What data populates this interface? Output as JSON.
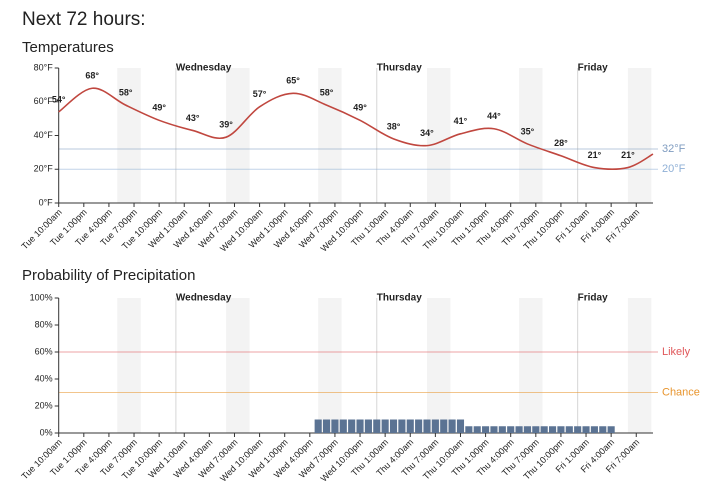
{
  "title": "Next 72 hours:",
  "chart_data": [
    {
      "type": "line",
      "title": "Temperatures",
      "xlim": [
        0,
        71
      ],
      "xticks": [
        {
          "value": 0,
          "label": "Tue 10:00am"
        },
        {
          "value": 3,
          "label": "Tue 1:00pm"
        },
        {
          "value": 6,
          "label": "Tue 4:00pm"
        },
        {
          "value": 9,
          "label": "Tue 7:00pm"
        },
        {
          "value": 12,
          "label": "Tue 10:00pm"
        },
        {
          "value": 15,
          "label": "Wed 1:00am"
        },
        {
          "value": 18,
          "label": "Wed 4:00am"
        },
        {
          "value": 21,
          "label": "Wed 7:00am"
        },
        {
          "value": 24,
          "label": "Wed 10:00am"
        },
        {
          "value": 27,
          "label": "Wed 1:00pm"
        },
        {
          "value": 30,
          "label": "Wed 4:00pm"
        },
        {
          "value": 33,
          "label": "Wed 7:00pm"
        },
        {
          "value": 36,
          "label": "Wed 10:00pm"
        },
        {
          "value": 39,
          "label": "Thu 1:00am"
        },
        {
          "value": 42,
          "label": "Thu 4:00am"
        },
        {
          "value": 45,
          "label": "Thu 7:00am"
        },
        {
          "value": 48,
          "label": "Thu 10:00am"
        },
        {
          "value": 51,
          "label": "Thu 1:00pm"
        },
        {
          "value": 54,
          "label": "Thu 4:00pm"
        },
        {
          "value": 57,
          "label": "Thu 7:00pm"
        },
        {
          "value": 60,
          "label": "Thu 10:00pm"
        },
        {
          "value": 63,
          "label": "Fri 1:00am"
        },
        {
          "value": 66,
          "label": "Fri 4:00am"
        },
        {
          "value": 69,
          "label": "Fri 7:00am"
        }
      ],
      "day_markers": [
        {
          "value": 14,
          "label": "Wednesday"
        },
        {
          "value": 38,
          "label": "Thursday"
        },
        {
          "value": 62,
          "label": "Friday"
        }
      ],
      "ylim": [
        0,
        80
      ],
      "yticks": [
        {
          "value": 0,
          "label": "0°F"
        },
        {
          "value": 20,
          "label": "20°F"
        },
        {
          "value": 40,
          "label": "40°F"
        },
        {
          "value": 60,
          "label": "60°F"
        },
        {
          "value": 80,
          "label": "80°F"
        }
      ],
      "reference_lines": [
        {
          "value": 32,
          "label": "32°F",
          "color": "#7f9cc0"
        },
        {
          "value": 20,
          "label": "20°F",
          "color": "#8fb0d6"
        }
      ],
      "series": [
        {
          "color": "#c0473f",
          "x": [
            0,
            4,
            8,
            12,
            16,
            20,
            24,
            28,
            32,
            36,
            40,
            44,
            48,
            52,
            56,
            60,
            64,
            68,
            71
          ],
          "values": [
            54,
            68,
            58,
            49,
            43,
            39,
            57,
            65,
            58,
            49,
            38,
            34,
            41,
            44,
            35,
            28,
            21,
            21,
            29
          ],
          "value_labels": [
            "54°",
            "68°",
            "58°",
            "49°",
            "43°",
            "39°",
            "57°",
            "65°",
            "58°",
            "49°",
            "38°",
            "34°",
            "41°",
            "44°",
            "35°",
            "28°",
            "21°",
            "21°",
            null
          ]
        }
      ]
    },
    {
      "type": "bar",
      "title": "Probability of Precipitation",
      "xlim": [
        0,
        71
      ],
      "xticks": [
        {
          "value": 0,
          "label": "Tue 10:00am"
        },
        {
          "value": 3,
          "label": "Tue 1:00pm"
        },
        {
          "value": 6,
          "label": "Tue 4:00pm"
        },
        {
          "value": 9,
          "label": "Tue 7:00pm"
        },
        {
          "value": 12,
          "label": "Tue 10:00pm"
        },
        {
          "value": 15,
          "label": "Wed 1:00am"
        },
        {
          "value": 18,
          "label": "Wed 4:00am"
        },
        {
          "value": 21,
          "label": "Wed 7:00am"
        },
        {
          "value": 24,
          "label": "Wed 10:00am"
        },
        {
          "value": 27,
          "label": "Wed 1:00pm"
        },
        {
          "value": 30,
          "label": "Wed 4:00pm"
        },
        {
          "value": 33,
          "label": "Wed 7:00pm"
        },
        {
          "value": 36,
          "label": "Wed 10:00pm"
        },
        {
          "value": 39,
          "label": "Thu 1:00am"
        },
        {
          "value": 42,
          "label": "Thu 4:00am"
        },
        {
          "value": 45,
          "label": "Thu 7:00am"
        },
        {
          "value": 48,
          "label": "Thu 10:00am"
        },
        {
          "value": 51,
          "label": "Thu 1:00pm"
        },
        {
          "value": 54,
          "label": "Thu 4:00pm"
        },
        {
          "value": 57,
          "label": "Thu 7:00pm"
        },
        {
          "value": 60,
          "label": "Thu 10:00pm"
        },
        {
          "value": 63,
          "label": "Fri 1:00am"
        },
        {
          "value": 66,
          "label": "Fri 4:00am"
        },
        {
          "value": 69,
          "label": "Fri 7:00am"
        }
      ],
      "day_markers": [
        {
          "value": 14,
          "label": "Wednesday"
        },
        {
          "value": 38,
          "label": "Thursday"
        },
        {
          "value": 62,
          "label": "Friday"
        }
      ],
      "ylim": [
        0,
        100
      ],
      "yticks": [
        {
          "value": 0,
          "label": "0%"
        },
        {
          "value": 20,
          "label": "20%"
        },
        {
          "value": 40,
          "label": "40%"
        },
        {
          "value": 60,
          "label": "60%"
        },
        {
          "value": 80,
          "label": "80%"
        },
        {
          "value": 100,
          "label": "100%"
        }
      ],
      "reference_lines": [
        {
          "value": 60,
          "label": "Likely",
          "color": "#e0575a"
        },
        {
          "value": 30,
          "label": "Chance",
          "color": "#e8952e"
        }
      ],
      "series": [
        {
          "color": "#5b7393",
          "x": [
            31,
            32,
            33,
            34,
            35,
            36,
            37,
            38,
            39,
            40,
            41,
            42,
            43,
            44,
            45,
            46,
            47,
            48,
            49,
            50,
            51,
            52,
            53,
            54,
            55,
            56,
            57,
            58,
            59,
            60,
            61,
            62,
            63,
            64,
            65,
            66
          ],
          "values": [
            10,
            10,
            10,
            10,
            10,
            10,
            10,
            10,
            10,
            10,
            10,
            10,
            10,
            10,
            10,
            10,
            10,
            10,
            5,
            5,
            5,
            5,
            5,
            5,
            5,
            5,
            5,
            5,
            5,
            5,
            5,
            5,
            5,
            5,
            5,
            5
          ]
        }
      ]
    }
  ]
}
